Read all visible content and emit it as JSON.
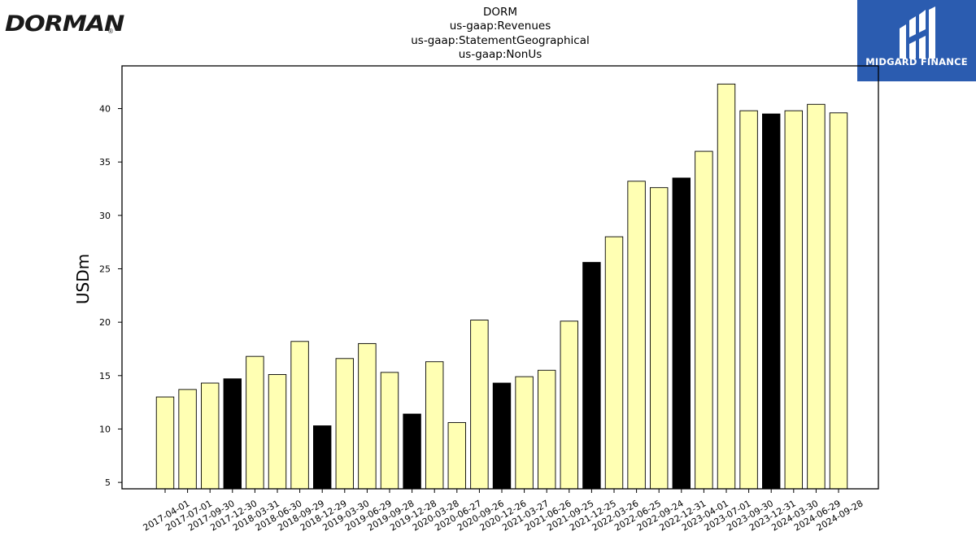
{
  "header": {
    "left_logo_text": "DORMAN",
    "left_logo_mark": "®",
    "right_logo_text": "MIDGARD FINANCE"
  },
  "chart_data": {
    "type": "bar",
    "title_lines": [
      "DORM",
      "us-gaap:Revenues",
      "us-gaap:StatementGeographical",
      "us-gaap:NonUs"
    ],
    "xlabel": "",
    "ylabel": "USDm",
    "ylim": [
      4.4,
      44
    ],
    "yticks": [
      5,
      10,
      15,
      20,
      25,
      30,
      35,
      40
    ],
    "grid": false,
    "colors": {
      "default": "#ffffb3",
      "highlight": "#000000",
      "edge": "#000000"
    },
    "categories": [
      "2017-04-01",
      "2017-07-01",
      "2017-09-30",
      "2017-12-30",
      "2018-03-31",
      "2018-06-30",
      "2018-09-29",
      "2018-12-29",
      "2019-03-30",
      "2019-06-29",
      "2019-09-28",
      "2019-12-28",
      "2020-03-28",
      "2020-06-27",
      "2020-09-26",
      "2020-12-26",
      "2021-03-27",
      "2021-06-26",
      "2021-09-25",
      "2021-12-25",
      "2022-03-26",
      "2022-06-25",
      "2022-09-24",
      "2022-12-31",
      "2023-04-01",
      "2023-07-01",
      "2023-09-30",
      "2023-12-31",
      "2024-03-30",
      "2024-06-29",
      "2024-09-28"
    ],
    "values": [
      13.0,
      13.7,
      14.3,
      14.7,
      16.8,
      15.1,
      18.2,
      10.3,
      16.6,
      18.0,
      15.3,
      11.4,
      16.3,
      10.6,
      20.2,
      14.3,
      14.9,
      15.5,
      20.1,
      25.6,
      28.0,
      33.2,
      32.6,
      33.5,
      36.0,
      42.3,
      39.8,
      39.5,
      39.8,
      40.4,
      39.6
    ],
    "highlight": [
      false,
      false,
      false,
      true,
      false,
      false,
      false,
      true,
      false,
      false,
      false,
      true,
      false,
      false,
      false,
      true,
      false,
      false,
      false,
      true,
      false,
      false,
      false,
      true,
      false,
      false,
      false,
      true,
      false,
      false,
      false
    ]
  }
}
